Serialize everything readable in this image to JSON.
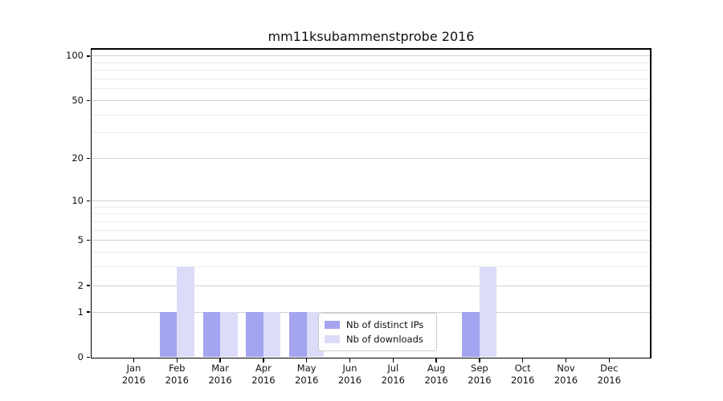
{
  "chart_data": {
    "type": "bar",
    "title": "mm11ksubammenstprobe 2016",
    "xlabel": "",
    "ylabel": "",
    "year_label": "2016",
    "categories": [
      "Jan",
      "Feb",
      "Mar",
      "Apr",
      "May",
      "Jun",
      "Jul",
      "Aug",
      "Sep",
      "Oct",
      "Nov",
      "Dec"
    ],
    "series": [
      {
        "name": "Nb of distinct IPs",
        "color": "#a4a4f1",
        "values": [
          0,
          1,
          1,
          1,
          1,
          0,
          0,
          0,
          1,
          0,
          0,
          0
        ]
      },
      {
        "name": "Nb of downloads",
        "color": "#dcdcf8",
        "values": [
          0,
          3,
          1,
          1,
          1,
          0,
          0,
          0,
          3,
          0,
          0,
          0
        ]
      }
    ],
    "y_scale": "log1p",
    "y_ticks": [
      0,
      1,
      2,
      5,
      10,
      20,
      50,
      100
    ],
    "y_minor_ticks": [
      3,
      4,
      6,
      7,
      8,
      9,
      30,
      40,
      60,
      70,
      80,
      90
    ],
    "ylim": [
      0,
      113
    ],
    "grid": true,
    "legend_position": "inside-bottom-center"
  }
}
